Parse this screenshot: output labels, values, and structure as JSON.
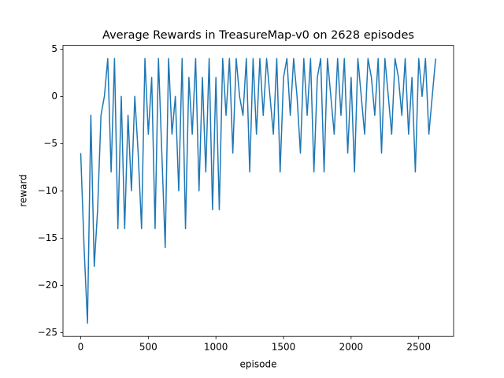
{
  "chart_data": {
    "type": "line",
    "title": "Average Rewards in TreasureMap-v0 on 2628 episodes",
    "x_label": "episode",
    "y_label": "reward",
    "x": [
      0,
      25,
      50,
      75,
      100,
      125,
      150,
      175,
      200,
      225,
      250,
      275,
      300,
      325,
      350,
      375,
      400,
      425,
      450,
      475,
      500,
      525,
      550,
      575,
      600,
      625,
      650,
      675,
      700,
      725,
      750,
      775,
      800,
      825,
      850,
      875,
      900,
      925,
      950,
      975,
      1000,
      1025,
      1050,
      1075,
      1100,
      1125,
      1150,
      1175,
      1200,
      1225,
      1250,
      1275,
      1300,
      1325,
      1350,
      1375,
      1400,
      1425,
      1450,
      1475,
      1500,
      1525,
      1550,
      1575,
      1600,
      1625,
      1650,
      1675,
      1700,
      1725,
      1750,
      1775,
      1800,
      1825,
      1850,
      1875,
      1900,
      1925,
      1950,
      1975,
      2000,
      2025,
      2050,
      2075,
      2100,
      2125,
      2150,
      2175,
      2200,
      2225,
      2250,
      2275,
      2300,
      2325,
      2350,
      2375,
      2400,
      2425,
      2450,
      2475,
      2500,
      2525,
      2550,
      2575,
      2600,
      2625
    ],
    "series": [
      {
        "name": "reward",
        "color": "#1f77b4",
        "values": [
          -6,
          -16,
          -24,
          -2,
          -18,
          -12,
          -2,
          0,
          4,
          -8,
          4,
          -14,
          0,
          -14,
          -2,
          -10,
          0,
          -6,
          -14,
          4,
          -4,
          2,
          -14,
          4,
          -6,
          -16,
          4,
          -4,
          0,
          -10,
          4,
          -14,
          2,
          -4,
          4,
          -10,
          2,
          -8,
          4,
          -12,
          2,
          -12,
          4,
          -2,
          4,
          -6,
          4,
          0,
          -2,
          4,
          -8,
          4,
          -4,
          4,
          -2,
          4,
          0,
          -4,
          4,
          -8,
          2,
          4,
          -2,
          4,
          0,
          -6,
          4,
          -2,
          4,
          -8,
          2,
          4,
          -8,
          4,
          0,
          -4,
          4,
          -2,
          4,
          -6,
          2,
          -8,
          4,
          0,
          -4,
          4,
          2,
          -2,
          4,
          -6,
          4,
          0,
          -4,
          4,
          2,
          -2,
          4,
          -4,
          2,
          -8,
          4,
          0,
          4,
          -4,
          0,
          4
        ]
      }
    ],
    "xlim": [
      -131,
      2758
    ],
    "ylim": [
      -25.4,
      5.4
    ],
    "xticks": [
      0,
      500,
      1000,
      1500,
      2000,
      2500
    ],
    "yticks": [
      {
        "value": -25,
        "label": "−25"
      },
      {
        "value": -20,
        "label": "−20"
      },
      {
        "value": -15,
        "label": "−15"
      },
      {
        "value": -10,
        "label": "−10"
      },
      {
        "value": -5,
        "label": "−5"
      },
      0,
      5
    ]
  }
}
